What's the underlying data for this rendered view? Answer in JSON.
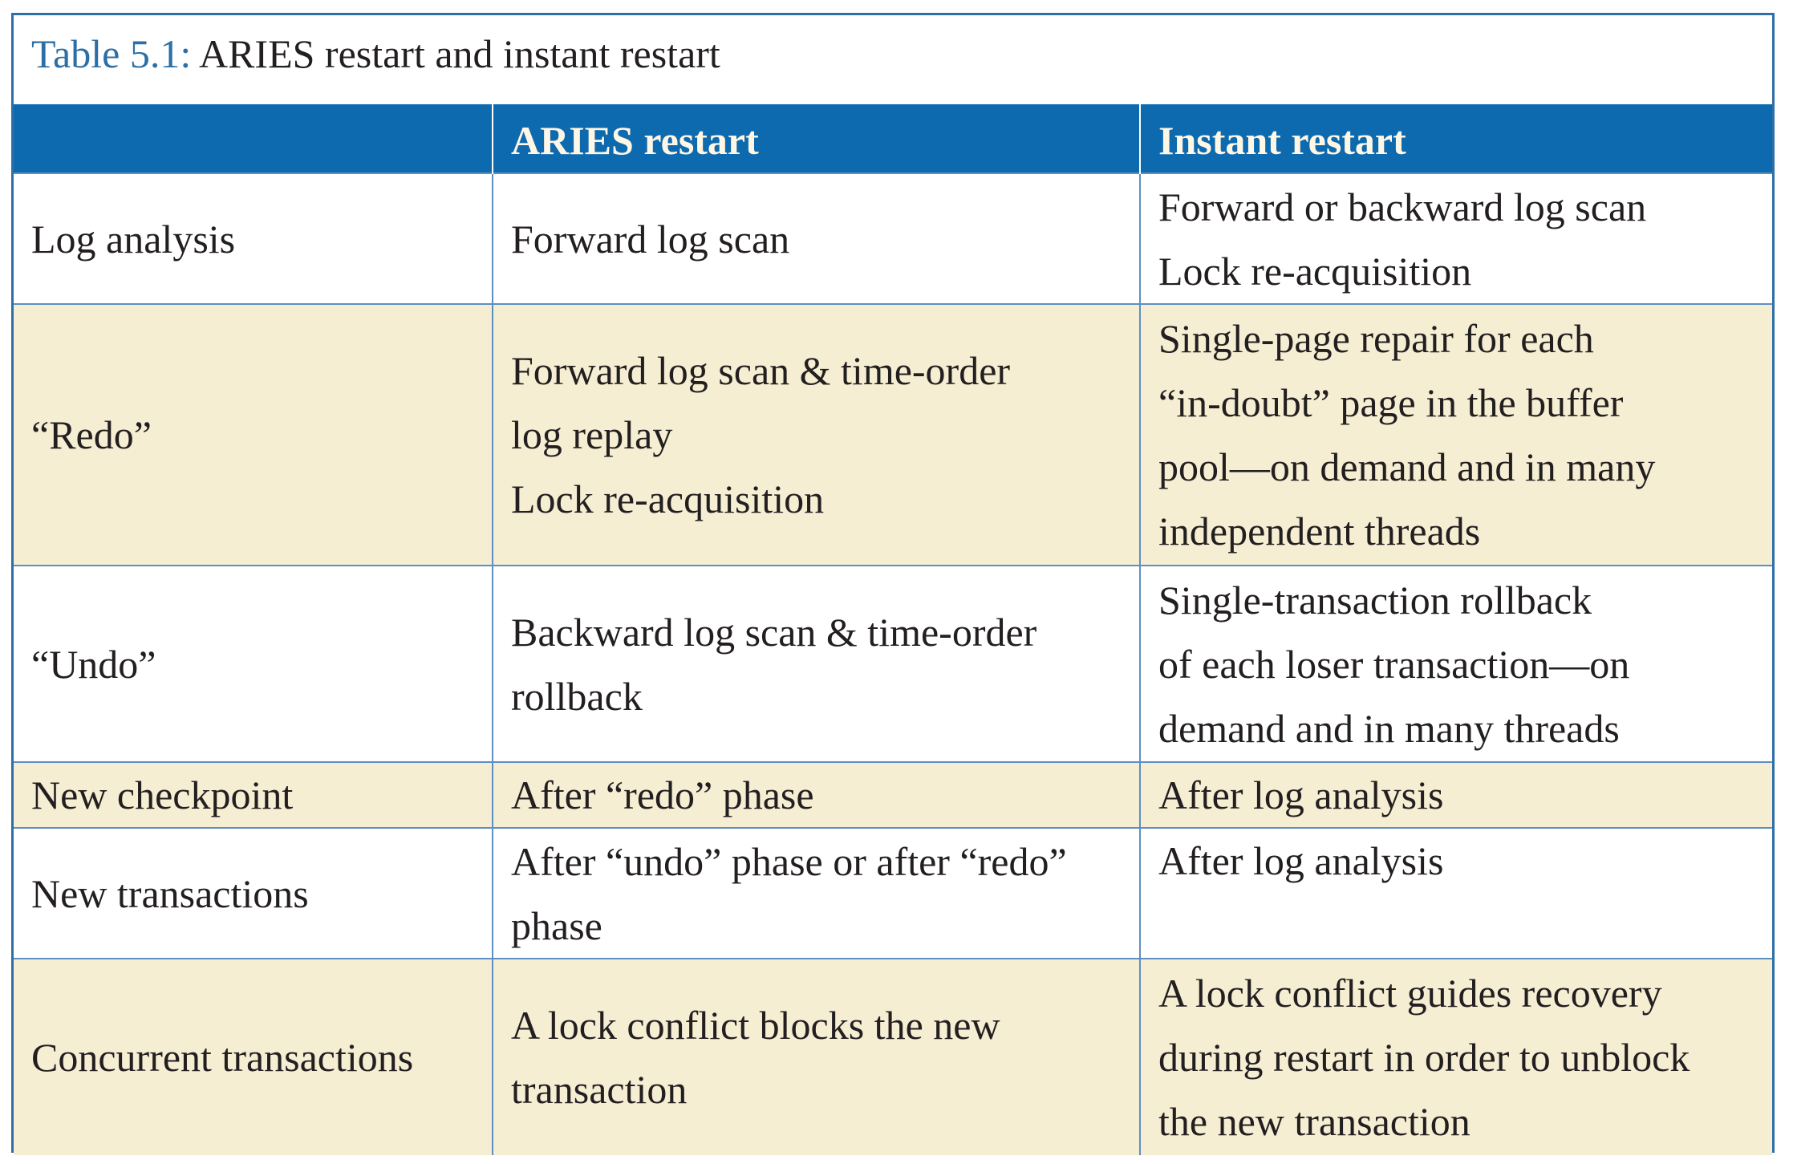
{
  "caption": {
    "label": "Table 5.1:",
    "text": "ARIES restart and instant restart"
  },
  "columns": [
    "",
    "ARIES restart",
    "Instant restart"
  ],
  "rows": [
    {
      "label": "Log analysis",
      "aries": [
        "Forward log scan"
      ],
      "instant": [
        "Forward or backward log scan",
        "Lock re-acquisition"
      ]
    },
    {
      "label": "“Redo”",
      "aries": [
        "Forward log scan & time-order",
        "log replay",
        "Lock re-acquisition"
      ],
      "instant": [
        "Single-page repair for each",
        "“in-doubt” page in the buffer",
        "pool—on demand and in many",
        "independent threads"
      ]
    },
    {
      "label": "“Undo”",
      "aries": [
        "Backward log scan & time-order",
        "rollback"
      ],
      "instant": [
        "Single-transaction rollback",
        "of each loser transaction—on",
        "demand and in many threads"
      ]
    },
    {
      "label": "New checkpoint",
      "aries": [
        "After “redo” phase"
      ],
      "instant": [
        "After log analysis"
      ]
    },
    {
      "label": "New transactions",
      "aries": [
        "After “undo” phase or after “redo”",
        "phase"
      ],
      "instant": [
        "After log analysis"
      ]
    },
    {
      "label": "Concurrent transactions",
      "aries": [
        "A lock conflict blocks the new",
        "transaction"
      ],
      "instant": [
        "A lock conflict guides recovery",
        "during restart in order to unblock",
        "the new transaction"
      ]
    }
  ]
}
